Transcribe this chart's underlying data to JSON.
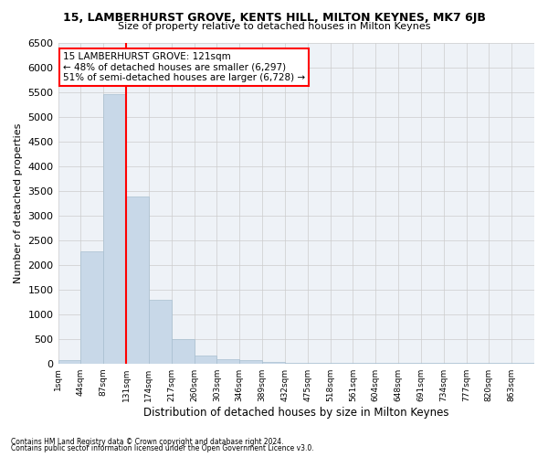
{
  "title": "15, LAMBERHURST GROVE, KENTS HILL, MILTON KEYNES, MK7 6JB",
  "subtitle": "Size of property relative to detached houses in Milton Keynes",
  "xlabel": "Distribution of detached houses by size in Milton Keynes",
  "ylabel": "Number of detached properties",
  "bar_color": "#c8d8e8",
  "bar_edge_color": "#a8bfd0",
  "bin_labels": [
    "1sqm",
    "44sqm",
    "87sqm",
    "131sqm",
    "174sqm",
    "217sqm",
    "260sqm",
    "303sqm",
    "346sqm",
    "389sqm",
    "432sqm",
    "475sqm",
    "518sqm",
    "561sqm",
    "604sqm",
    "648sqm",
    "691sqm",
    "734sqm",
    "777sqm",
    "820sqm",
    "863sqm"
  ],
  "bar_heights": [
    75,
    2270,
    5450,
    3380,
    1290,
    490,
    160,
    85,
    75,
    40,
    10,
    5,
    5,
    5,
    5,
    5,
    5,
    5,
    5,
    5,
    5
  ],
  "red_line_x": 3.0,
  "annotation_text": "15 LAMBERHURST GROVE: 121sqm\n← 48% of detached houses are smaller (6,297)\n51% of semi-detached houses are larger (6,728) →",
  "annotation_box_color": "white",
  "annotation_box_edge_color": "red",
  "red_line_color": "red",
  "grid_color": "#cccccc",
  "background_color": "#eef2f7",
  "ylim": [
    0,
    6500
  ],
  "yticks": [
    0,
    500,
    1000,
    1500,
    2000,
    2500,
    3000,
    3500,
    4000,
    4500,
    5000,
    5500,
    6000,
    6500
  ],
  "footnote1": "Contains HM Land Registry data © Crown copyright and database right 2024.",
  "footnote2": "Contains public sector information licensed under the Open Government Licence v3.0."
}
